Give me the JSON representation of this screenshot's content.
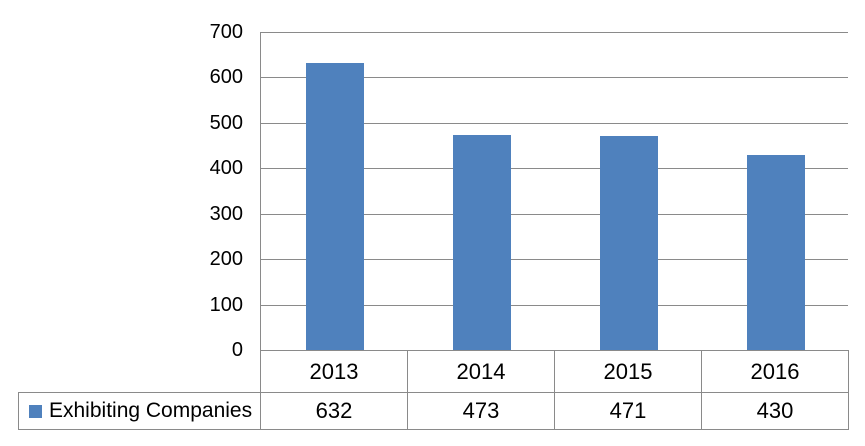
{
  "chart_data": {
    "type": "bar",
    "title": "",
    "xlabel": "",
    "ylabel": "",
    "categories": [
      "2013",
      "2014",
      "2015",
      "2016"
    ],
    "series": [
      {
        "name": "Exhibiting Companies",
        "values": [
          632,
          473,
          471,
          430
        ]
      }
    ],
    "ylim": [
      0,
      700
    ],
    "yticks": [
      700,
      600,
      500,
      400,
      300,
      200,
      100,
      0
    ],
    "grid": true,
    "legend_position": "bottom-left-table-cell",
    "data_table_shown": true,
    "bar_color": "#4F81BD",
    "grid_color": "#8a8a8a",
    "text_color": "#000000",
    "background_color": "#ffffff"
  }
}
